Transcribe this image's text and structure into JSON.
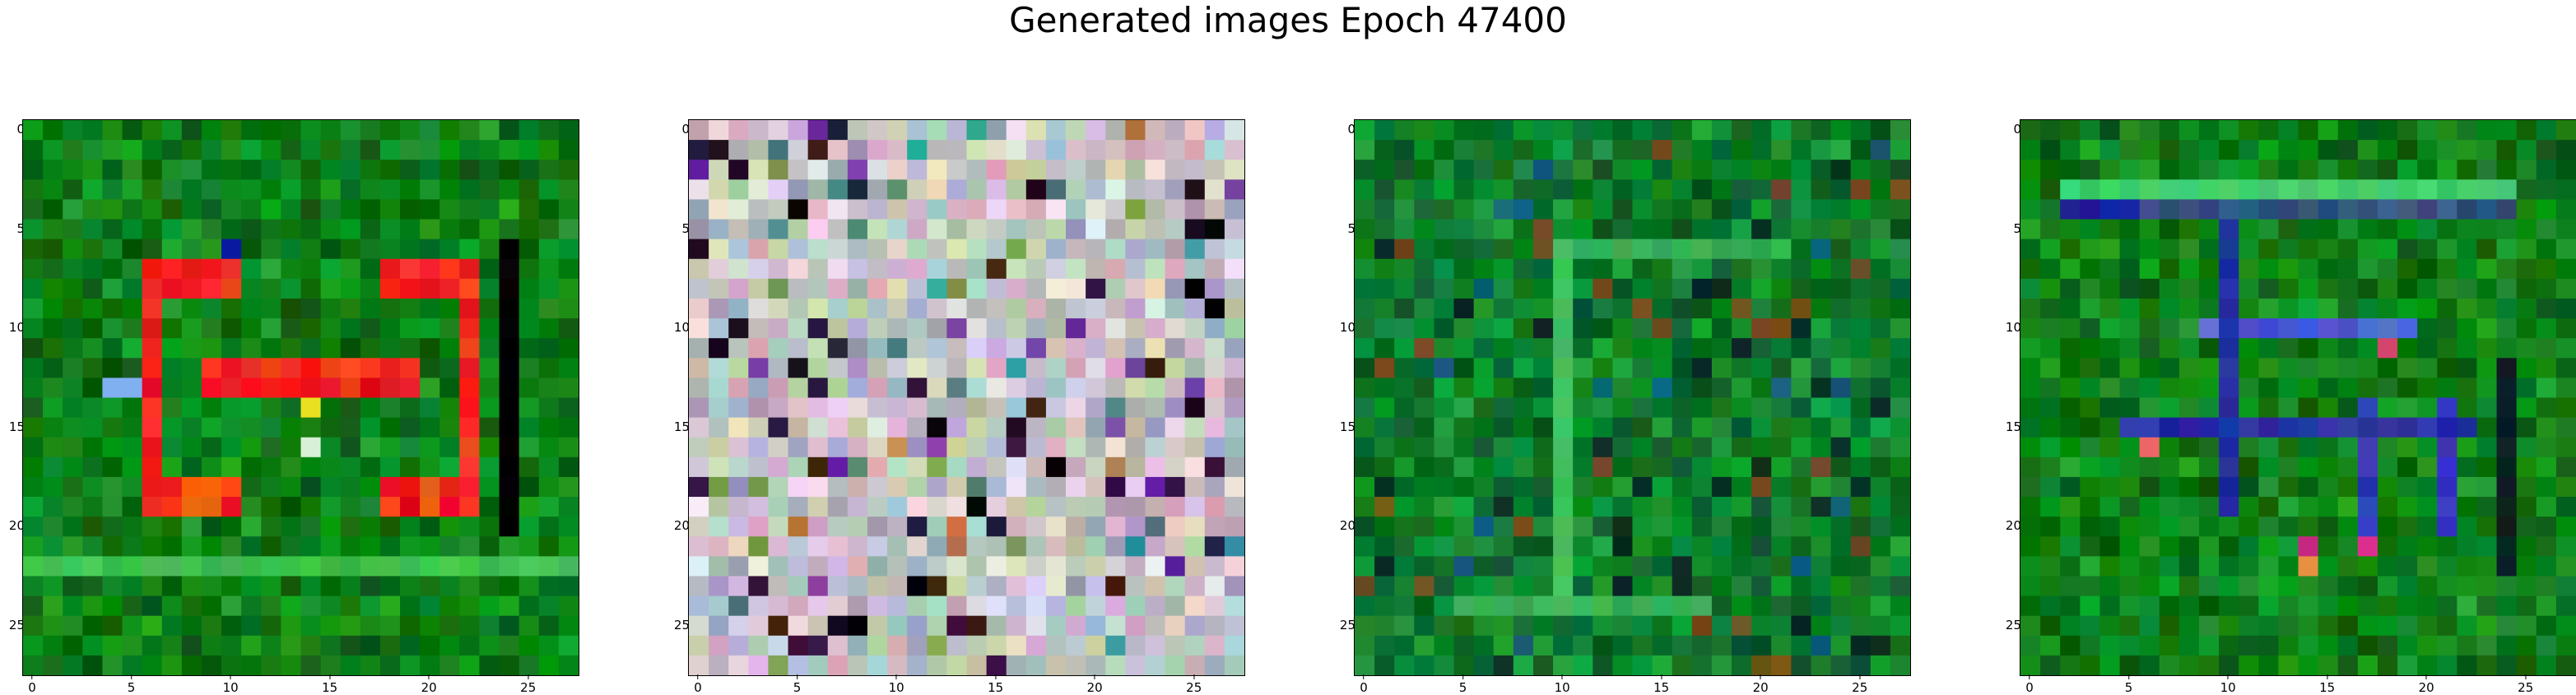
{
  "figure": {
    "title": "Generated images Epoch 47400"
  },
  "axes": {
    "ticks": [
      "0",
      "5",
      "10",
      "15",
      "20",
      "25"
    ],
    "tick_values": [
      0,
      5,
      10,
      15,
      20,
      25
    ],
    "grid_size": 28
  },
  "panels": [
    {
      "name": "generated-image-1",
      "description_palette": [
        "#0b7a10",
        "#0f8a1a",
        "#0a6a0e",
        "#158f25",
        "#ee2222",
        "#f53a1a",
        "#f06a10",
        "#e8e020",
        "#000000"
      ],
      "motif": "letter-E-red"
    },
    {
      "name": "generated-image-2",
      "description_palette": [
        "#c8b8d0",
        "#b0c0b0",
        "#d8c8d8",
        "#a8b8c8",
        "#e8e0e8",
        "#908870",
        "#3a2040",
        "#7050a0",
        "#c0a080"
      ],
      "motif": "pastel-noise"
    },
    {
      "name": "generated-image-3",
      "description_palette": [
        "#0a7a20",
        "#108a30",
        "#0a6028",
        "#1aa040",
        "#30b050",
        "#0a3a20",
        "#205020",
        "#806020"
      ],
      "motif": "green-cross"
    },
    {
      "name": "generated-image-4",
      "description_palette": [
        "#0a7a18",
        "#108a28",
        "#0a6a18",
        "#1a9a30",
        "#2a30a0",
        "#4050d0",
        "#c04080",
        "#e06060",
        "#0a2020"
      ],
      "motif": "green-blue-frame"
    }
  ]
}
